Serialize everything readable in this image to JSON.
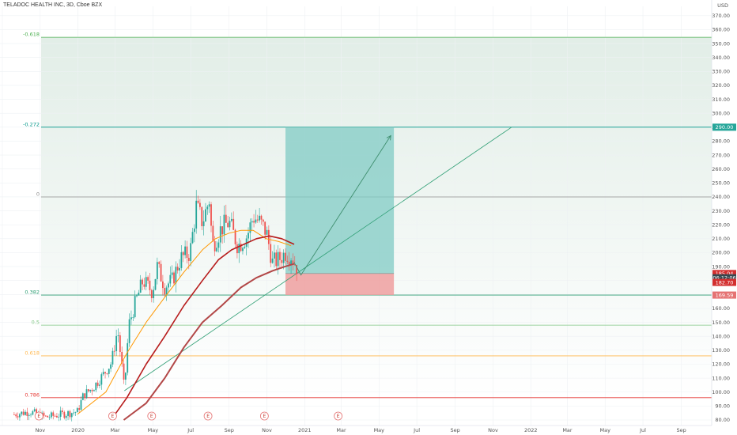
{
  "header": {
    "title": "TELADOC HEALTH INC, 3D, Cboe BZX",
    "currency": "USD"
  },
  "chart_data": {
    "type": "candlestick",
    "ylim": [
      80,
      375
    ],
    "x_start": "2019-09-01",
    "x_end": "2021-10-31",
    "yticks": [
      80,
      90,
      100,
      110,
      120,
      130,
      140,
      150,
      160,
      170,
      180,
      190,
      200,
      210,
      220,
      230,
      240,
      250,
      260,
      270,
      280,
      290,
      300,
      310,
      320,
      330,
      340,
      350,
      360,
      370
    ],
    "xticks": [
      {
        "label": "Sep",
        "date": "2019-09-01"
      },
      {
        "label": "Nov",
        "date": "2019-11-01"
      },
      {
        "label": "2020",
        "date": "2020-01-01"
      },
      {
        "label": "Mar",
        "date": "2020-03-01"
      },
      {
        "label": "May",
        "date": "2020-05-01"
      },
      {
        "label": "Jul",
        "date": "2020-07-01"
      },
      {
        "label": "Sep",
        "date": "2020-09-01"
      },
      {
        "label": "Nov",
        "date": "2020-11-01"
      },
      {
        "label": "2021",
        "date": "2021-01-01"
      },
      {
        "label": "Mar",
        "date": "2021-03-01"
      },
      {
        "label": "May",
        "date": "2021-05-01"
      },
      {
        "label": "Jul",
        "date": "2021-07-01"
      },
      {
        "label": "Sep",
        "date": "2021-09-01"
      },
      {
        "label": "Nov",
        "date": "2021-11-01"
      },
      {
        "label": "2022",
        "date": "2022-01-01"
      },
      {
        "label": "Mar",
        "date": "2022-03-01"
      },
      {
        "label": "May",
        "date": "2022-05-01"
      },
      {
        "label": "Jul",
        "date": "2022-07-01"
      },
      {
        "label": "Sep",
        "date": "2022-09-01"
      }
    ],
    "x_end_display": "2022-10-20",
    "price_path": [
      [
        "2019-09-20",
        84
      ],
      [
        "2019-10-15",
        86
      ],
      [
        "2019-11-10",
        82
      ],
      [
        "2019-12-05",
        84
      ],
      [
        "2019-12-31",
        86
      ],
      [
        "2020-01-10",
        98
      ],
      [
        "2020-01-25",
        103
      ],
      [
        "2020-02-10",
        112
      ],
      [
        "2020-02-24",
        121
      ],
      [
        "2020-03-05",
        145
      ],
      [
        "2020-03-12",
        118
      ],
      [
        "2020-03-16",
        101
      ],
      [
        "2020-03-23",
        148
      ],
      [
        "2020-04-01",
        162
      ],
      [
        "2020-04-15",
        180
      ],
      [
        "2020-04-30",
        172
      ],
      [
        "2020-05-08",
        190
      ],
      [
        "2020-05-20",
        176
      ],
      [
        "2020-06-01",
        180
      ],
      [
        "2020-06-15",
        196
      ],
      [
        "2020-06-30",
        200
      ],
      [
        "2020-07-10",
        233
      ],
      [
        "2020-07-20",
        222
      ],
      [
        "2020-07-31",
        238
      ],
      [
        "2020-08-05",
        205
      ],
      [
        "2020-08-20",
        218
      ],
      [
        "2020-09-01",
        222
      ],
      [
        "2020-09-15",
        205
      ],
      [
        "2020-09-30",
        212
      ],
      [
        "2020-10-10",
        226
      ],
      [
        "2020-10-20",
        222
      ],
      [
        "2020-10-31",
        215
      ],
      [
        "2020-11-10",
        193
      ],
      [
        "2020-11-20",
        195
      ],
      [
        "2020-12-01",
        200
      ],
      [
        "2020-12-10",
        198
      ],
      [
        "2020-12-20",
        189
      ]
    ],
    "earnings_dates": [
      "2019-10-30",
      "2020-02-26",
      "2020-04-29",
      "2020-07-29",
      "2020-10-28",
      "2021-02-24"
    ],
    "earnings_label": "E",
    "ma_fast": [
      [
        "2019-12-31",
        84
      ],
      [
        "2020-02-15",
        100
      ],
      [
        "2020-03-20",
        128
      ],
      [
        "2020-04-20",
        150
      ],
      [
        "2020-05-20",
        168
      ],
      [
        "2020-06-20",
        186
      ],
      [
        "2020-07-20",
        202
      ],
      [
        "2020-08-10",
        210
      ],
      [
        "2020-09-01",
        214
      ],
      [
        "2020-09-20",
        216
      ],
      [
        "2020-10-10",
        216
      ],
      [
        "2020-10-31",
        210
      ],
      [
        "2020-11-20",
        208
      ],
      [
        "2020-12-10",
        205
      ]
    ],
    "ma_mid": [
      [
        "2020-02-25",
        81
      ],
      [
        "2020-03-20",
        96
      ],
      [
        "2020-04-20",
        120
      ],
      [
        "2020-05-20",
        140
      ],
      [
        "2020-06-20",
        162
      ],
      [
        "2020-07-20",
        180
      ],
      [
        "2020-08-15",
        195
      ],
      [
        "2020-09-05",
        202
      ],
      [
        "2020-09-25",
        206
      ],
      [
        "2020-10-15",
        210
      ],
      [
        "2020-11-05",
        212
      ],
      [
        "2020-11-25",
        210
      ],
      [
        "2020-12-15",
        206
      ]
    ],
    "ma_slow": [
      [
        "2020-03-15",
        80
      ],
      [
        "2020-04-20",
        92
      ],
      [
        "2020-05-20",
        110
      ],
      [
        "2020-06-20",
        132
      ],
      [
        "2020-07-20",
        150
      ],
      [
        "2020-08-20",
        162
      ],
      [
        "2020-09-20",
        175
      ],
      [
        "2020-10-15",
        182
      ],
      [
        "2020-11-10",
        187
      ],
      [
        "2020-11-30",
        190
      ],
      [
        "2020-12-15",
        192
      ]
    ],
    "trendline": {
      "from": [
        "2020-03-16",
        101
      ],
      "to": [
        "2021-12-01",
        290
      ]
    },
    "projection_path": [
      [
        "2020-12-15",
        193
      ],
      [
        "2020-12-26",
        184
      ],
      [
        "2021-05-20",
        284
      ]
    ],
    "position": {
      "start": "2020-12-01",
      "end": "2021-05-25",
      "entry": 185.04,
      "target": 290,
      "stop": 169.59
    },
    "fib_levels": [
      {
        "label": "-0.618",
        "price": 354.5,
        "color": "#4caf50"
      },
      {
        "label": "-0.272",
        "price": 290,
        "color": "#009688"
      },
      {
        "label": "0",
        "price": 240,
        "color": "#8d8d8d"
      },
      {
        "label": "0.382",
        "price": 169.59,
        "color": "#2e9e74"
      },
      {
        "label": "0.5",
        "price": 148,
        "color": "#81c784"
      },
      {
        "label": "0.618",
        "price": 126,
        "color": "#ffb74d"
      },
      {
        "label": "0.786",
        "price": 96,
        "color": "#e53935"
      }
    ],
    "price_tags": [
      {
        "text": "290.00",
        "price": 290,
        "color": "#26a69a"
      },
      {
        "text": "185.04",
        "price": 185.04,
        "color": "#d32f2f"
      },
      {
        "text": "06:12:06",
        "price": 182,
        "color": "#37474f"
      },
      {
        "text": "182.70",
        "price": 178.7,
        "color": "#d32f2f"
      },
      {
        "text": "169.59",
        "price": 169.59,
        "color": "#e57373"
      }
    ],
    "colors": {
      "up": "#26a69a",
      "down": "#ef5350",
      "ma_fast": "#ff9800",
      "ma_mid": "#b71c1c",
      "ma_slow": "#b24747",
      "trend": "#2e9e74",
      "profit_zone": "#80cbc4",
      "loss_zone": "#ef9a9a"
    }
  }
}
